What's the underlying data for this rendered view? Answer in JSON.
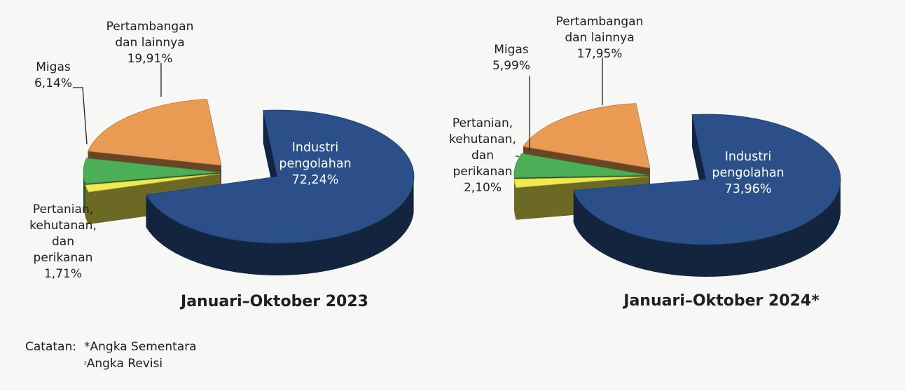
{
  "chart_data": [
    {
      "type": "pie",
      "title": "Januari–Oktober 2023",
      "slices": [
        {
          "label_lines": [
            "Industri",
            "pengolahan",
            "72,24%"
          ],
          "value": 72.24,
          "color": "#2b5089"
        },
        {
          "label_lines": [
            "Pertanian,",
            "kehutanan,",
            "dan",
            "perikanan",
            "1,71%"
          ],
          "value": 1.71,
          "color": "#eeea50"
        },
        {
          "label_lines": [
            "Migas",
            "6,14%"
          ],
          "value": 6.14,
          "color": "#4dae58"
        },
        {
          "label_lines": [
            "Pertambangan",
            "dan lainnya",
            "19,91%"
          ],
          "value": 19.91,
          "color": "#e99a53"
        }
      ]
    },
    {
      "type": "pie",
      "title": "Januari–Oktober 2024*",
      "slices": [
        {
          "label_lines": [
            "Industri",
            "pengolahan",
            "73,96%"
          ],
          "value": 73.96,
          "color": "#2b5089"
        },
        {
          "label_lines": [
            "Pertanian,",
            "kehutanan,",
            "dan",
            "perikanan",
            "2,10%"
          ],
          "value": 2.1,
          "color": "#eeea50"
        },
        {
          "label_lines": [
            "Migas",
            "5,99%"
          ],
          "value": 5.99,
          "color": "#4dae58"
        },
        {
          "label_lines": [
            "Pertambangan",
            "dan lainnya",
            "17,95%"
          ],
          "value": 17.95,
          "color": "#e99a53"
        }
      ]
    }
  ],
  "notes": {
    "label": "Catatan:",
    "line1": "*Angka Sementara",
    "line2_mark": "r",
    "line2": "Angka Revisi"
  }
}
